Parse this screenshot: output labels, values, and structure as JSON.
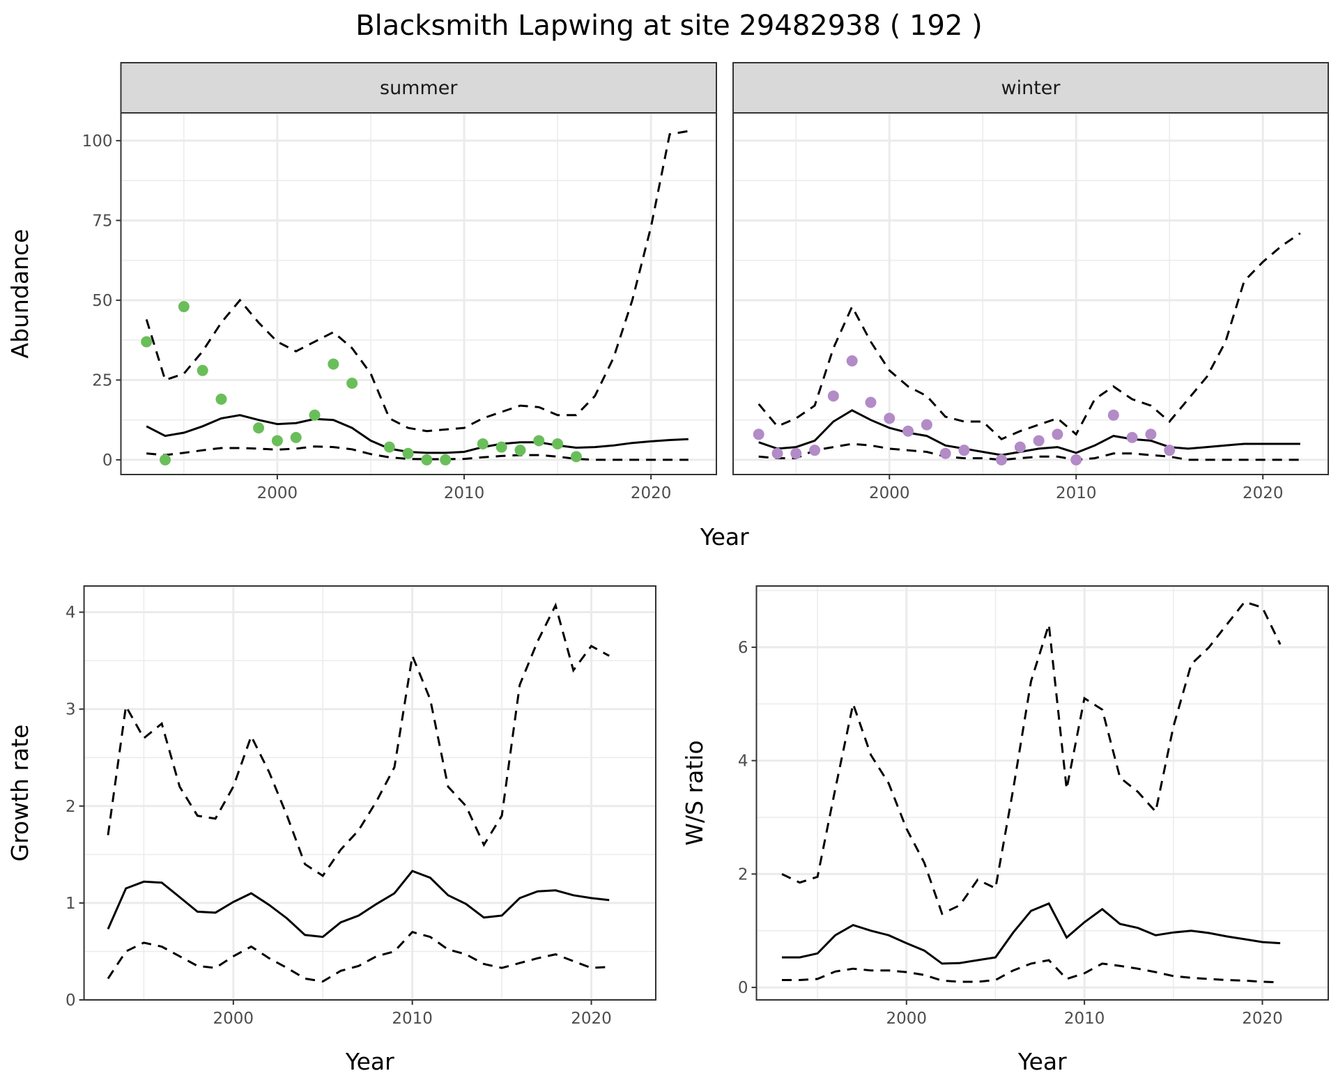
{
  "title": "Blacksmith Lapwing at site 29482938 ( 192 )",
  "colors": {
    "summer_points": "#6abe5a",
    "winter_points": "#b28bc7",
    "line": "#000000",
    "strip": "#d9d9d9",
    "grid": "#ebebeb"
  },
  "chart_data": [
    {
      "type": "line",
      "facet": "summer",
      "xlabel": "Year",
      "ylabel": "Abundance",
      "xlim": [
        1991.63,
        2023.5
      ],
      "ylim": [
        -4.6,
        108.7
      ],
      "xticks": [
        2000,
        2010,
        2020
      ],
      "yticks": [
        0,
        25,
        50,
        75,
        100
      ],
      "points": {
        "x": [
          1993,
          1994,
          1995,
          1996,
          1997,
          1999,
          2000,
          2001,
          2002,
          2003,
          2004,
          2006,
          2007,
          2008,
          2009,
          2011,
          2012,
          2013,
          2014,
          2015,
          2016
        ],
        "y": [
          37,
          0,
          48,
          28,
          19,
          10,
          6,
          7,
          14,
          30,
          24,
          4,
          2,
          0,
          0,
          5,
          4,
          3,
          6,
          5,
          1
        ]
      },
      "x": [
        1993,
        1994,
        1995,
        1996,
        1997,
        1998,
        1999,
        2000,
        2001,
        2002,
        2003,
        2004,
        2005,
        2006,
        2007,
        2008,
        2009,
        2010,
        2011,
        2012,
        2013,
        2014,
        2015,
        2016,
        2017,
        2018,
        2019,
        2020,
        2021,
        2022
      ],
      "series": [
        {
          "name": "mean",
          "style": "solid",
          "values": [
            10.5,
            7.5,
            8.5,
            10.5,
            13,
            14,
            12.5,
            11.2,
            11.5,
            12.8,
            12.5,
            10,
            6,
            3.5,
            2.5,
            2.2,
            2.2,
            2.5,
            4,
            5,
            5.5,
            5.5,
            4.5,
            3.8,
            4,
            4.5,
            5.3,
            5.8,
            6.2,
            6.5
          ]
        },
        {
          "name": "upper",
          "style": "dashed",
          "values": [
            44,
            25,
            27,
            34,
            43,
            50,
            43,
            37,
            34,
            37,
            40,
            35,
            27,
            13,
            10,
            9,
            9.5,
            10,
            13,
            15,
            17,
            16.5,
            14,
            14,
            20,
            32,
            50,
            73,
            102,
            103
          ]
        },
        {
          "name": "lower",
          "style": "dashed",
          "values": [
            2,
            1.5,
            2.2,
            3,
            3.7,
            3.7,
            3.5,
            3.2,
            3.5,
            4.2,
            4,
            3.3,
            1.8,
            0.8,
            0.3,
            0.2,
            0.2,
            0.3,
            0.8,
            1.2,
            1.5,
            1.5,
            1,
            0.3,
            0,
            0,
            0,
            0,
            0,
            0
          ]
        }
      ]
    },
    {
      "type": "line",
      "facet": "winter",
      "xlabel": "Year",
      "ylabel": "Abundance",
      "xlim": [
        1991.63,
        2023.5
      ],
      "ylim": [
        -4.6,
        108.7
      ],
      "xticks": [
        2000,
        2010,
        2020
      ],
      "yticks": [
        0,
        25,
        50,
        75,
        100
      ],
      "points": {
        "x": [
          1993,
          1994,
          1995,
          1996,
          1997,
          1998,
          1999,
          2000,
          2001,
          2002,
          2003,
          2004,
          2006,
          2007,
          2008,
          2009,
          2010,
          2012,
          2013,
          2014,
          2015
        ],
        "y": [
          8,
          2,
          2,
          3,
          20,
          31,
          18,
          13,
          9,
          11,
          2,
          3,
          0,
          4,
          6,
          8,
          0,
          14,
          7,
          8,
          3
        ]
      },
      "x": [
        1993,
        1994,
        1995,
        1996,
        1997,
        1998,
        1999,
        2000,
        2001,
        2002,
        2003,
        2004,
        2005,
        2006,
        2007,
        2008,
        2009,
        2010,
        2011,
        2012,
        2013,
        2014,
        2015,
        2016,
        2017,
        2018,
        2019,
        2020,
        2021,
        2022
      ],
      "series": [
        {
          "name": "mean",
          "style": "solid",
          "values": [
            5.5,
            3.5,
            4,
            6,
            12,
            15.5,
            12.5,
            10,
            8.5,
            7.5,
            4.5,
            3.5,
            2.5,
            1.5,
            2.5,
            3.5,
            4,
            2.2,
            4.5,
            7.5,
            6.5,
            6,
            4,
            3.5,
            4,
            4.5,
            5,
            5,
            5,
            5
          ]
        },
        {
          "name": "upper",
          "style": "dashed",
          "values": [
            17.5,
            10.5,
            13,
            17,
            35,
            48,
            37,
            28,
            23,
            20,
            13.5,
            12,
            12,
            6.5,
            9,
            11,
            13,
            8,
            19,
            23,
            19,
            17,
            12,
            19,
            26,
            37,
            56,
            62,
            67,
            71
          ]
        },
        {
          "name": "lower",
          "style": "dashed",
          "values": [
            1,
            0.5,
            0.5,
            3,
            4,
            5,
            4.5,
            3.5,
            3,
            2.5,
            1,
            0.5,
            0.5,
            0,
            0.5,
            1,
            1,
            0,
            0.5,
            2,
            2,
            1.5,
            1,
            0,
            0,
            0,
            0,
            0,
            0,
            0
          ]
        }
      ]
    },
    {
      "type": "line",
      "xlabel": "Year",
      "ylabel": "Growth rate",
      "xlim": [
        1991.66,
        2023.6
      ],
      "ylim": [
        0,
        4.27
      ],
      "xticks": [
        2000,
        2010,
        2020
      ],
      "yticks": [
        0,
        1,
        2,
        3,
        4
      ],
      "x": [
        1993,
        1994,
        1995,
        1996,
        1997,
        1998,
        1999,
        2000,
        2001,
        2002,
        2003,
        2004,
        2005,
        2006,
        2007,
        2008,
        2009,
        2010,
        2011,
        2012,
        2013,
        2014,
        2015,
        2016,
        2017,
        2018,
        2019,
        2020,
        2021
      ],
      "series": [
        {
          "name": "mean",
          "style": "solid",
          "values": [
            0.73,
            1.15,
            1.22,
            1.21,
            1.06,
            0.91,
            0.9,
            1.01,
            1.1,
            0.98,
            0.84,
            0.67,
            0.65,
            0.8,
            0.87,
            0.99,
            1.1,
            1.33,
            1.26,
            1.08,
            0.99,
            0.85,
            0.87,
            1.05,
            1.12,
            1.13,
            1.08,
            1.05,
            1.03
          ]
        },
        {
          "name": "upper",
          "style": "dashed",
          "values": [
            1.7,
            3.03,
            2.7,
            2.85,
            2.2,
            1.9,
            1.87,
            2.2,
            2.72,
            2.35,
            1.9,
            1.4,
            1.28,
            1.55,
            1.75,
            2.05,
            2.4,
            3.55,
            3.1,
            2.2,
            2.0,
            1.6,
            1.9,
            3.25,
            3.7,
            4.07,
            3.4,
            3.65,
            3.55
          ]
        },
        {
          "name": "lower",
          "style": "dashed",
          "values": [
            0.22,
            0.5,
            0.59,
            0.55,
            0.45,
            0.35,
            0.33,
            0.45,
            0.55,
            0.43,
            0.33,
            0.22,
            0.19,
            0.3,
            0.35,
            0.45,
            0.5,
            0.7,
            0.65,
            0.52,
            0.47,
            0.37,
            0.33,
            0.38,
            0.43,
            0.47,
            0.4,
            0.33,
            0.34
          ]
        }
      ]
    },
    {
      "type": "line",
      "xlabel": "Year",
      "ylabel": "W/S ratio",
      "xlim": [
        1991.57,
        2023.7
      ],
      "ylim": [
        -0.22,
        7.08
      ],
      "xticks": [
        2000,
        2010,
        2020
      ],
      "yticks": [
        0,
        2,
        4,
        6
      ],
      "x": [
        1993,
        1994,
        1995,
        1996,
        1997,
        1998,
        1999,
        2000,
        2001,
        2002,
        2003,
        2004,
        2005,
        2006,
        2007,
        2008,
        2009,
        2010,
        2011,
        2012,
        2013,
        2014,
        2015,
        2016,
        2017,
        2018,
        2019,
        2020,
        2021
      ],
      "series": [
        {
          "name": "mean",
          "style": "solid",
          "values": [
            0.53,
            0.53,
            0.6,
            0.92,
            1.1,
            1.0,
            0.92,
            0.78,
            0.65,
            0.42,
            0.43,
            0.48,
            0.53,
            0.97,
            1.35,
            1.48,
            0.88,
            1.15,
            1.38,
            1.12,
            1.05,
            0.92,
            0.97,
            1.0,
            0.96,
            0.9,
            0.85,
            0.8,
            0.78
          ]
        },
        {
          "name": "upper",
          "style": "dashed",
          "values": [
            2.0,
            1.85,
            1.95,
            3.5,
            5.0,
            4.1,
            3.6,
            2.8,
            2.2,
            1.3,
            1.45,
            1.9,
            1.75,
            3.5,
            5.4,
            6.4,
            3.5,
            5.1,
            4.9,
            3.7,
            3.45,
            3.1,
            4.6,
            5.7,
            6.0,
            6.4,
            6.8,
            6.7,
            6.05
          ]
        },
        {
          "name": "lower",
          "style": "dashed",
          "values": [
            0.13,
            0.13,
            0.15,
            0.28,
            0.33,
            0.3,
            0.3,
            0.27,
            0.22,
            0.12,
            0.1,
            0.1,
            0.13,
            0.3,
            0.42,
            0.48,
            0.15,
            0.25,
            0.42,
            0.38,
            0.33,
            0.27,
            0.2,
            0.17,
            0.15,
            0.13,
            0.12,
            0.1,
            0.09
          ]
        }
      ]
    }
  ]
}
